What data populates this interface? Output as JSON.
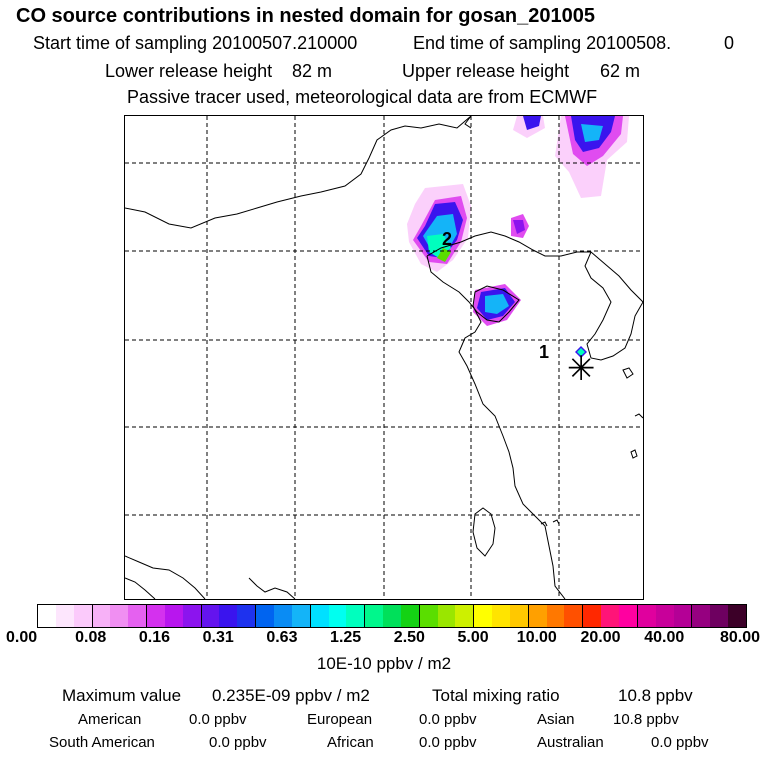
{
  "header": {
    "title": "CO  source contributions in nested domain for gosan_201005",
    "start_label": "Start time of sampling 20100507.210000",
    "end_label": "End time of sampling 20100508.",
    "end_suffix": "0",
    "lower_label": "Lower release height",
    "lower_value": "82 m",
    "upper_label": "Upper release height",
    "upper_value": "62 m",
    "note": "Passive tracer used, meteorological data are from ECMWF"
  },
  "map": {
    "labels": [
      {
        "text": "1"
      },
      {
        "text": "2"
      }
    ],
    "receptor_icon": "asterisk-marker-icon"
  },
  "colorbar": {
    "unit": "10E-10 ppbv / m2",
    "ticks": [
      "0.00",
      "0.08",
      "0.16",
      "0.31",
      "0.63",
      "1.25",
      "2.50",
      "5.00",
      "10.00",
      "20.00",
      "40.00",
      "80.00"
    ],
    "colors": [
      "#ffffff",
      "#fde6fd",
      "#fbcafb",
      "#f7b1f7",
      "#f08ff2",
      "#e561f0",
      "#d431ee",
      "#b816ee",
      "#8c14ee",
      "#6414ee",
      "#3a14ee",
      "#1e32ee",
      "#0064f0",
      "#0a8cf4",
      "#14b4f8",
      "#00e0ff",
      "#00fff0",
      "#00ffbe",
      "#00f78c",
      "#00e05a",
      "#14d214",
      "#5ade00",
      "#9ae600",
      "#cdf000",
      "#ffff00",
      "#ffe400",
      "#ffc800",
      "#ffa000",
      "#ff7800",
      "#ff5000",
      "#ff2800",
      "#ff1478",
      "#ff00a0",
      "#e0009e",
      "#c8009a",
      "#b40096",
      "#960080",
      "#6e0060",
      "#3c0028"
    ]
  },
  "stats": {
    "max_label": "Maximum value",
    "max_value": "0.235E-09 ppbv / m2",
    "total_label": "Total mixing ratio",
    "total_value": "10.8 ppbv",
    "regions": [
      {
        "name": "American",
        "value": "0.0 ppbv"
      },
      {
        "name": "European",
        "value": "0.0 ppbv"
      },
      {
        "name": "Asian",
        "value": "10.8 ppbv"
      },
      {
        "name": "South American",
        "value": "0.0 ppbv"
      },
      {
        "name": "African",
        "value": "0.0 ppbv"
      },
      {
        "name": "Australian",
        "value": "0.0 ppbv"
      }
    ]
  }
}
